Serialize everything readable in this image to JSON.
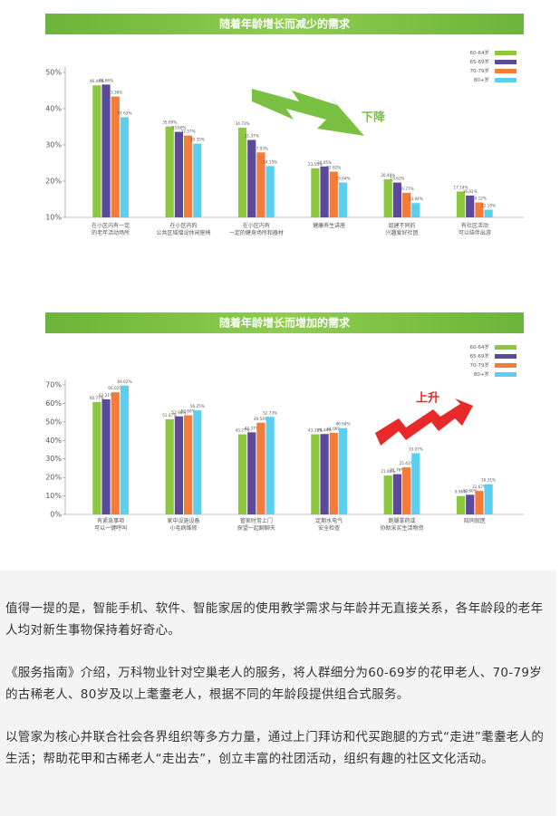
{
  "chart_data": [
    {
      "type": "bar",
      "title": "随着年龄增长而减少的需求",
      "categories": [
        "在小区内有一定\n的老年活动场所",
        "在小区内的\n公共区域增设休闲座椅",
        "在小区内有\n一定的健身场所和器材",
        "健康养生讲座",
        "组建不同的\n兴趣爱好社团",
        "有社区活动\n可以结伴出游"
      ],
      "series": [
        {
          "name": "60-64岁",
          "color": "#8dc63f",
          "values": [
            46.44,
            35.09,
            34.73,
            23.55,
            20.48,
            17.14
          ],
          "value_labels": [
            "46.44%",
            "35.09%",
            "34.73%",
            "23.55%",
            "20.48%",
            "17.14%"
          ]
        },
        {
          "name": "65-69岁",
          "color": "#5b4a9b",
          "values": [
            46.66,
            33.6,
            31.37,
            24.05,
            19.61,
            16.02
          ],
          "value_labels": [
            "46.66%",
            "33.60%",
            "31.37%",
            "24.05%",
            "19.61%",
            "16.02%"
          ]
        },
        {
          "name": "70-79岁",
          "color": "#f47b3a",
          "values": [
            43.36,
            32.57,
            27.93,
            22.62,
            16.77,
            14.12
          ],
          "value_labels": [
            "43.36%",
            "32.57%",
            "27.93%",
            "22.62%",
            "16.77%",
            "14.12%"
          ]
        },
        {
          "name": "80+岁",
          "color": "#5ccfef",
          "values": [
            37.63,
            30.35,
            24.15,
            19.64,
            13.94,
            12.1
          ],
          "value_labels": [
            "37.63%",
            "30.35%",
            "24.15%",
            "19.64%",
            "13.94%",
            "12.10%"
          ]
        }
      ],
      "ylim": [
        10,
        50
      ],
      "yticks": [
        {
          "value": 10,
          "label": "10%"
        },
        {
          "value": 20,
          "label": "20%"
        },
        {
          "value": 30,
          "label": "30%"
        },
        {
          "value": 40,
          "label": "40%"
        },
        {
          "value": 50,
          "label": "50%"
        }
      ],
      "annotation": "下降"
    },
    {
      "type": "bar",
      "title": "随着年龄增长而增加的需求",
      "categories": [
        "有紧急事项\n可以一键呼叫",
        "家中设施设备\n小毛病维修",
        "管家时常上门\n探望一起聊聊天",
        "定期水电气\n安全检查",
        "跑腿拿药或\n协助采买生活物资",
        "陪同就医"
      ],
      "series": [
        {
          "name": "60-64岁",
          "color": "#8dc63f",
          "values": [
            60.77,
            51.47,
            43.27,
            43.31,
            21.0,
            9.96
          ],
          "value_labels": [
            "60.77%",
            "51.47%",
            "43.27%",
            "43.31%",
            "21.00%",
            "9.96%"
          ]
        },
        {
          "name": "65-69岁",
          "color": "#5b4a9b",
          "values": [
            62.21,
            52.98,
            44.37,
            43.44,
            21.76,
            10.6
          ],
          "value_labels": [
            "62.21%",
            "52.98%",
            "44.37%",
            "43.44%",
            "21.76%",
            "10.60%"
          ]
        },
        {
          "name": "70-79岁",
          "color": "#f47b3a",
          "values": [
            66.02,
            53.6,
            49.54,
            44.06,
            25.43,
            12.67
          ],
          "value_labels": [
            "66.02%",
            "53.60%",
            "49.54%",
            "44.06%",
            "25.43%",
            "12.67%"
          ]
        },
        {
          "name": "80+岁",
          "color": "#5ccfef",
          "values": [
            69.62,
            56.25,
            52.73,
            46.64,
            33.07,
            16.31
          ],
          "value_labels": [
            "69.62%",
            "56.25%",
            "52.73%",
            "46.64%",
            "33.07%",
            "16.31%"
          ]
        }
      ],
      "ylim": [
        0,
        70
      ],
      "yticks": [
        {
          "value": 0,
          "label": "0%"
        },
        {
          "value": 10,
          "label": "10%"
        },
        {
          "value": 20,
          "label": "20%"
        },
        {
          "value": 30,
          "label": "30%"
        },
        {
          "value": 40,
          "label": "40%"
        },
        {
          "value": 50,
          "label": "50%"
        },
        {
          "value": 60,
          "label": "60%"
        },
        {
          "value": 70,
          "label": "70%"
        }
      ],
      "annotation": "上升"
    }
  ],
  "article": {
    "paragraphs": [
      "值得一提的是，智能手机、软件、智能家居的使用教学需求与年龄并无直接关系，各年龄段的老年人均对新生事物保持着好奇心。",
      "《服务指南》介绍，万科物业针对空巢老人的服务，将人群细分为60-69岁的花甲老人、70-79岁的古稀老人、80岁及以上耄耋老人，根据不同的年龄段提供组合式服务。",
      "以管家为核心并联合社会各界组织等多方力量，通过上门拜访和代买跑腿的方式“走进”耄耋老人的生活；帮助花甲和古稀老人“走出去”，创立丰富的社团活动，组织有趣的社区文化活动。"
    ]
  }
}
